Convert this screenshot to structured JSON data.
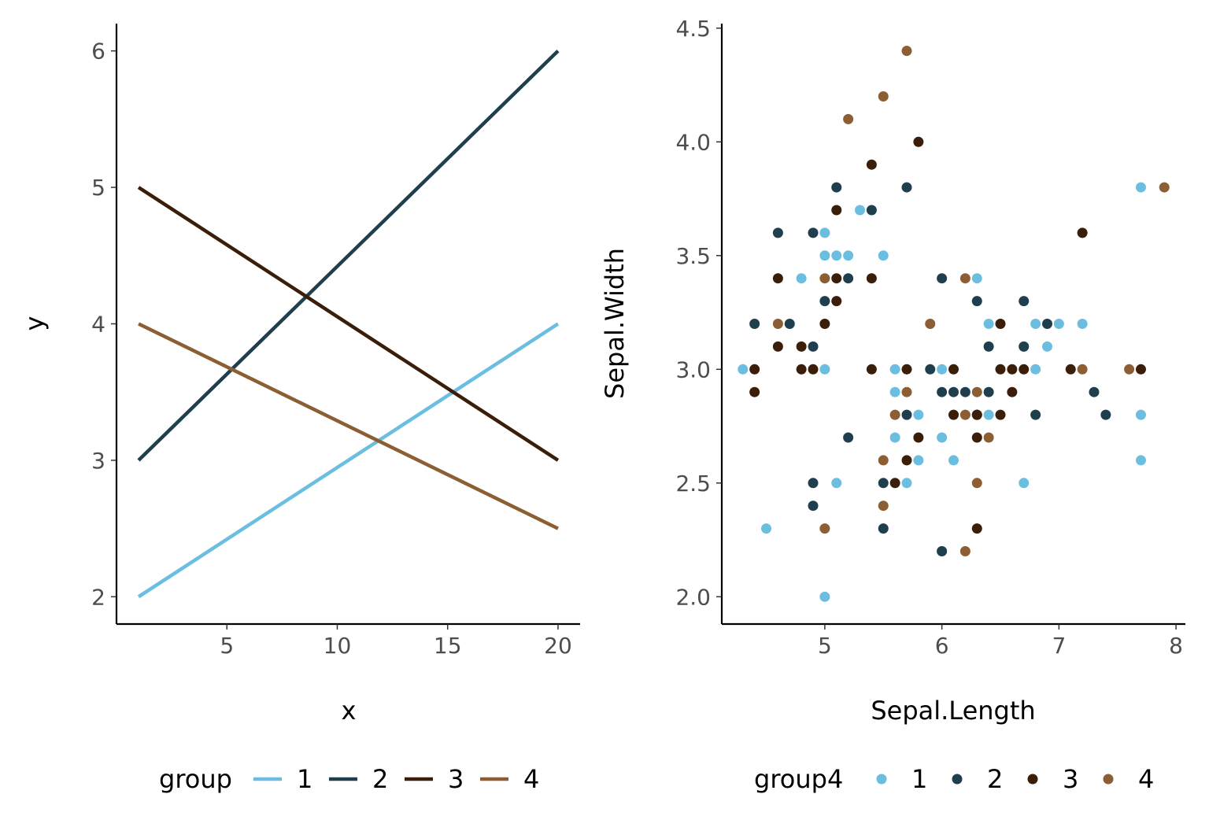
{
  "chart_data": [
    {
      "type": "line",
      "xlabel": "x",
      "ylabel": "y",
      "xlim": [
        0,
        21
      ],
      "ylim": [
        1.8,
        6.2
      ],
      "xticks": [
        5,
        10,
        15,
        20
      ],
      "yticks": [
        2,
        3,
        4,
        5,
        6
      ],
      "xtick_labels": [
        "5",
        "10",
        "15",
        "20"
      ],
      "ytick_labels": [
        "2",
        "3",
        "4",
        "5",
        "6"
      ],
      "grid": false,
      "legend": {
        "title": "group",
        "position": "bottom",
        "labels": [
          "1",
          "2",
          "3",
          "4"
        ]
      },
      "series": [
        {
          "name": "1",
          "color": "#6BBEE0",
          "x": [
            1,
            20
          ],
          "y": [
            2,
            4
          ]
        },
        {
          "name": "2",
          "color": "#1F3E4E",
          "x": [
            1,
            20
          ],
          "y": [
            3,
            6
          ]
        },
        {
          "name": "3",
          "color": "#3A1E0A",
          "x": [
            1,
            20
          ],
          "y": [
            5,
            3
          ]
        },
        {
          "name": "4",
          "color": "#8B5E34",
          "x": [
            1,
            20
          ],
          "y": [
            4,
            2.5
          ]
        }
      ]
    },
    {
      "type": "scatter",
      "xlabel": "Sepal.Length",
      "ylabel": "Sepal.Width",
      "xlim": [
        4.12,
        8.08
      ],
      "ylim": [
        1.88,
        4.52
      ],
      "xticks": [
        5,
        6,
        7,
        8
      ],
      "yticks": [
        2.0,
        2.5,
        3.0,
        3.5,
        4.0,
        4.5
      ],
      "xtick_labels": [
        "5",
        "6",
        "7",
        "8"
      ],
      "ytick_labels": [
        "2.0",
        "2.5",
        "3.0",
        "3.5",
        "4.0",
        "4.5"
      ],
      "grid": false,
      "legend": {
        "title": "group4",
        "position": "bottom",
        "labels": [
          "1",
          "2",
          "3",
          "4"
        ]
      },
      "series": [
        {
          "name": "1",
          "color": "#6BBEE0",
          "points": [
            [
              4.3,
              3.0
            ],
            [
              4.5,
              2.3
            ],
            [
              4.8,
              3.4
            ],
            [
              5.0,
              3.6
            ],
            [
              5.0,
              3.5
            ],
            [
              5.1,
              3.5
            ],
            [
              5.2,
              3.5
            ],
            [
              5.5,
              3.5
            ],
            [
              5.0,
              3.0
            ],
            [
              5.3,
              3.7
            ],
            [
              5.6,
              3.0
            ],
            [
              5.6,
              2.9
            ],
            [
              5.6,
              2.7
            ],
            [
              5.1,
              2.5
            ],
            [
              5.7,
              2.5
            ],
            [
              5.8,
              2.8
            ],
            [
              5.8,
              2.6
            ],
            [
              6.0,
              3.0
            ],
            [
              6.0,
              2.7
            ],
            [
              6.1,
              2.6
            ],
            [
              6.0,
              2.2
            ],
            [
              6.3,
              3.4
            ],
            [
              6.4,
              3.2
            ],
            [
              6.4,
              2.8
            ],
            [
              6.7,
              3.1
            ],
            [
              6.7,
              2.5
            ],
            [
              6.8,
              3.2
            ],
            [
              6.8,
              3.0
            ],
            [
              6.9,
              3.1
            ],
            [
              7.0,
              3.2
            ],
            [
              7.2,
              3.2
            ],
            [
              7.7,
              3.8
            ],
            [
              7.7,
              2.8
            ],
            [
              7.7,
              2.6
            ],
            [
              5.0,
              2.0
            ]
          ]
        },
        {
          "name": "2",
          "color": "#1F3E4E",
          "points": [
            [
              4.4,
              3.2
            ],
            [
              4.6,
              3.6
            ],
            [
              4.7,
              3.2
            ],
            [
              4.9,
              3.6
            ],
            [
              4.9,
              3.1
            ],
            [
              4.9,
              2.5
            ],
            [
              4.9,
              2.4
            ],
            [
              5.0,
              3.3
            ],
            [
              5.1,
              3.8
            ],
            [
              5.2,
              3.4
            ],
            [
              5.2,
              2.7
            ],
            [
              5.4,
              3.7
            ],
            [
              5.5,
              2.5
            ],
            [
              5.5,
              2.3
            ],
            [
              5.7,
              3.8
            ],
            [
              5.7,
              2.8
            ],
            [
              5.9,
              3.0
            ],
            [
              6.0,
              3.4
            ],
            [
              6.0,
              2.9
            ],
            [
              6.0,
              2.2
            ],
            [
              6.1,
              2.9
            ],
            [
              6.2,
              2.9
            ],
            [
              6.3,
              3.3
            ],
            [
              6.3,
              2.8
            ],
            [
              6.4,
              3.1
            ],
            [
              6.4,
              2.9
            ],
            [
              6.7,
              3.3
            ],
            [
              6.7,
              3.1
            ],
            [
              6.8,
              2.8
            ],
            [
              6.9,
              3.2
            ],
            [
              7.3,
              2.9
            ],
            [
              7.4,
              2.8
            ]
          ]
        },
        {
          "name": "3",
          "color": "#3A1E0A",
          "points": [
            [
              4.4,
              3.0
            ],
            [
              4.4,
              2.9
            ],
            [
              4.6,
              3.4
            ],
            [
              4.6,
              3.1
            ],
            [
              4.8,
              3.1
            ],
            [
              4.8,
              3.0
            ],
            [
              4.9,
              3.0
            ],
            [
              5.0,
              3.2
            ],
            [
              5.1,
              3.7
            ],
            [
              5.1,
              3.4
            ],
            [
              5.1,
              3.3
            ],
            [
              5.4,
              3.9
            ],
            [
              5.4,
              3.4
            ],
            [
              5.4,
              3.0
            ],
            [
              5.6,
              2.5
            ],
            [
              5.7,
              3.0
            ],
            [
              5.7,
              2.6
            ],
            [
              5.8,
              4.0
            ],
            [
              5.8,
              2.7
            ],
            [
              6.1,
              3.0
            ],
            [
              6.1,
              2.8
            ],
            [
              6.3,
              2.8
            ],
            [
              6.3,
              2.7
            ],
            [
              6.3,
              2.3
            ],
            [
              6.5,
              3.2
            ],
            [
              6.5,
              3.0
            ],
            [
              6.5,
              2.8
            ],
            [
              6.6,
              3.0
            ],
            [
              6.6,
              2.9
            ],
            [
              6.7,
              3.0
            ],
            [
              7.1,
              3.0
            ],
            [
              7.2,
              3.6
            ],
            [
              7.7,
              3.0
            ]
          ]
        },
        {
          "name": "4",
          "color": "#8B5E34",
          "points": [
            [
              4.6,
              3.2
            ],
            [
              5.0,
              3.4
            ],
            [
              5.0,
              2.3
            ],
            [
              5.2,
              4.1
            ],
            [
              5.5,
              4.2
            ],
            [
              5.5,
              2.6
            ],
            [
              5.5,
              2.4
            ],
            [
              5.6,
              2.8
            ],
            [
              5.7,
              4.4
            ],
            [
              5.7,
              2.9
            ],
            [
              5.9,
              3.2
            ],
            [
              6.2,
              3.4
            ],
            [
              6.2,
              2.8
            ],
            [
              6.2,
              2.2
            ],
            [
              6.3,
              2.9
            ],
            [
              6.3,
              2.5
            ],
            [
              6.4,
              2.7
            ],
            [
              7.2,
              3.0
            ],
            [
              7.6,
              3.0
            ],
            [
              7.9,
              3.8
            ]
          ]
        }
      ]
    }
  ]
}
